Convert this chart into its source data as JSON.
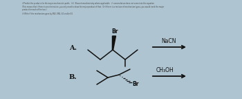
{
  "background_color": "#aec4d0",
  "header_lines": [
    "i) Predict the products for the major mechanistic paths   (iii)  Show stereochemistry where applicable.  ii) nomenclature does not come into the equation",
    "(This means that if there is an elimination, you only need to draw the major product of that.  Or if there is a mixture of mechanism types, you would need the major",
    "product for each of the two.)",
    "ii) Write if the mechanism goes by SN2, SN1, E2 and/or E1"
  ],
  "label_A": "A.",
  "label_B": "B.",
  "reagent_A": "NaCN",
  "reagent_B": "CH₃OH",
  "br_label": "Br",
  "arrow_color": "#111111",
  "text_color": "#111111",
  "line_color": "#111111",
  "header_color": "#444444"
}
